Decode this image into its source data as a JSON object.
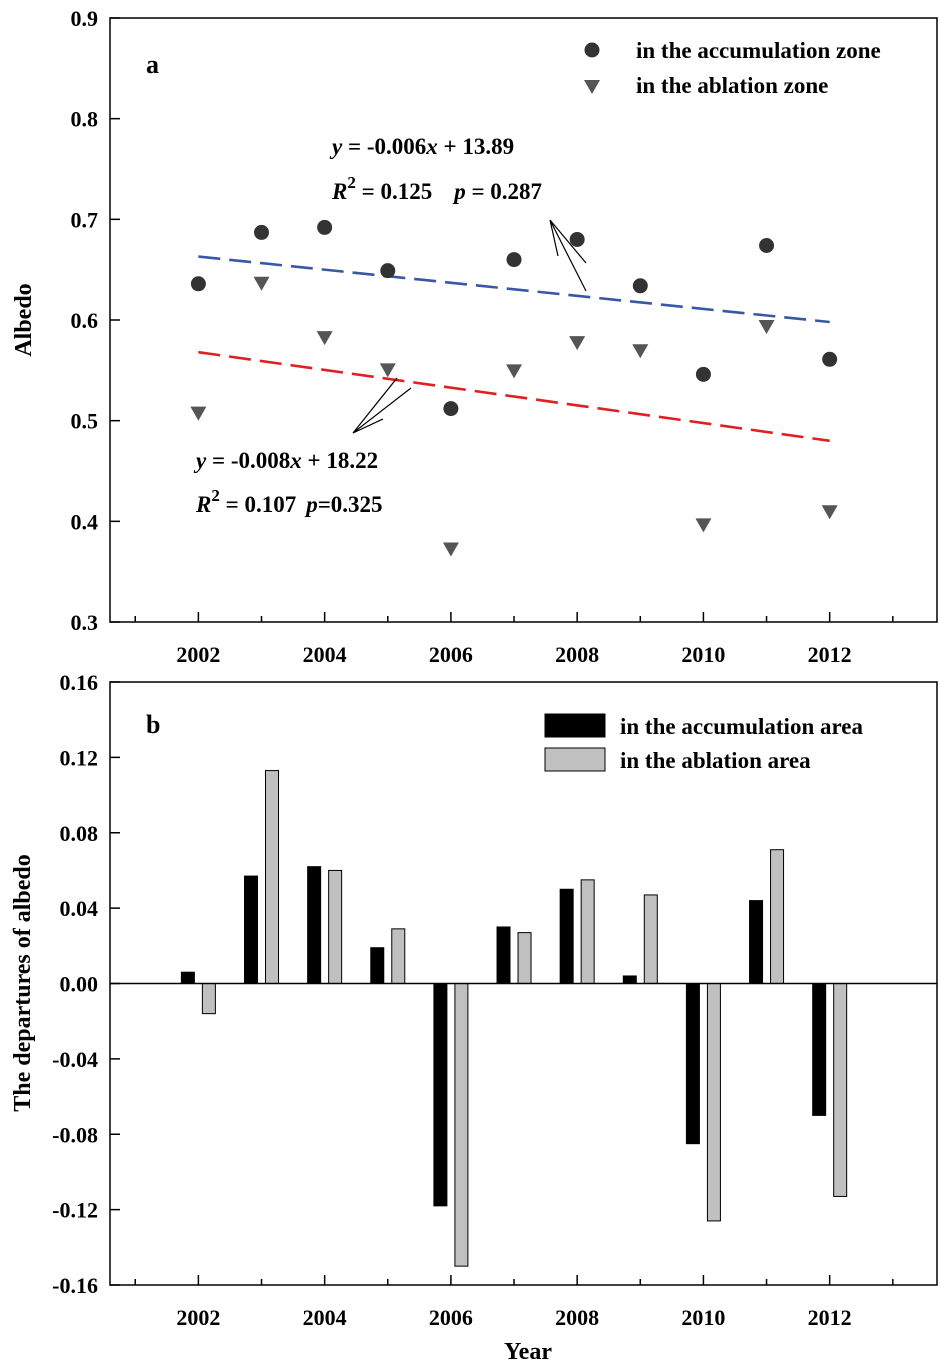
{
  "chart_data": [
    {
      "type": "scatter",
      "panel_label": "a",
      "ylabel": "Albedo",
      "xlabel": "",
      "xlim": [
        2000.6,
        2013.7
      ],
      "ylim": [
        0.3,
        0.9
      ],
      "xticks": [
        2002,
        2004,
        2006,
        2008,
        2010,
        2012
      ],
      "yticks": [
        0.3,
        0.4,
        0.5,
        0.6,
        0.7,
        0.8,
        0.9
      ],
      "ytick_labels": [
        "0.3",
        "0.4",
        "0.5",
        "0.6",
        "0.7",
        "0.8",
        "0.9"
      ],
      "x": [
        2002,
        2003,
        2004,
        2005,
        2006,
        2007,
        2008,
        2009,
        2010,
        2011,
        2012
      ],
      "series": [
        {
          "name": "in the accumulation zone",
          "marker": "circle",
          "color": "#333333",
          "values": [
            0.636,
            0.687,
            0.692,
            0.649,
            0.512,
            0.66,
            0.68,
            0.634,
            0.546,
            0.674,
            0.561
          ],
          "trend": {
            "start": [
              2002,
              0.663
            ],
            "end": [
              2012,
              0.598
            ],
            "color": "#3a56a6"
          }
        },
        {
          "name": "in the ablation zone",
          "marker": "triangle-down",
          "color": "#555555",
          "values": [
            0.507,
            0.636,
            0.582,
            0.55,
            0.372,
            0.549,
            0.577,
            0.569,
            0.396,
            0.593,
            0.409
          ],
          "trend": {
            "start": [
              2002,
              0.568
            ],
            "end": [
              2012,
              0.48
            ],
            "color": "#e02020"
          }
        }
      ],
      "legend_position": "top-right",
      "annotations": [
        {
          "id": "acc",
          "line1": {
            "pre": "y",
            "mid": " = -0.006",
            "var": "x",
            "post": " + 13.89"
          },
          "line2": {
            "r": "R",
            "sup": "2",
            "r_val": " = 0.125",
            "p": "p",
            "p_val": " = 0.287"
          }
        },
        {
          "id": "abl",
          "line1": {
            "pre": "y",
            "mid": " = -0.008",
            "var": "x",
            "post": " + 18.22"
          },
          "line2": {
            "r": "R",
            "sup": "2",
            "r_val": " = 0.107",
            "p": "p",
            "p_val": "=0.325"
          }
        }
      ]
    },
    {
      "type": "bar",
      "panel_label": "b",
      "ylabel": "The departures of albedo",
      "xlabel": "Year",
      "xlim": [
        2000.6,
        2013.7
      ],
      "ylim": [
        -0.16,
        0.16
      ],
      "xticks": [
        2002,
        2004,
        2006,
        2008,
        2010,
        2012
      ],
      "yticks": [
        -0.16,
        -0.12,
        -0.08,
        -0.04,
        0,
        0.04,
        0.08,
        0.12,
        0.16
      ],
      "ytick_labels": [
        "-0.16",
        "-0.12",
        "-0.08",
        "-0.04",
        "0.00",
        "0.04",
        "0.08",
        "0.12",
        "0.16"
      ],
      "categories": [
        2002,
        2003,
        2004,
        2005,
        2006,
        2007,
        2008,
        2009,
        2010,
        2011,
        2012
      ],
      "series": [
        {
          "name": "in the accumulation area",
          "color": "#000000",
          "values": [
            0.006,
            0.057,
            0.062,
            0.019,
            -0.118,
            0.03,
            0.05,
            0.004,
            -0.085,
            0.044,
            -0.07
          ]
        },
        {
          "name": "in the ablation area",
          "color": "#c0c0c0",
          "values": [
            -0.016,
            0.113,
            0.06,
            0.029,
            -0.15,
            0.027,
            0.055,
            0.047,
            -0.126,
            0.071,
            -0.113
          ]
        }
      ],
      "legend_position": "top-right"
    }
  ]
}
